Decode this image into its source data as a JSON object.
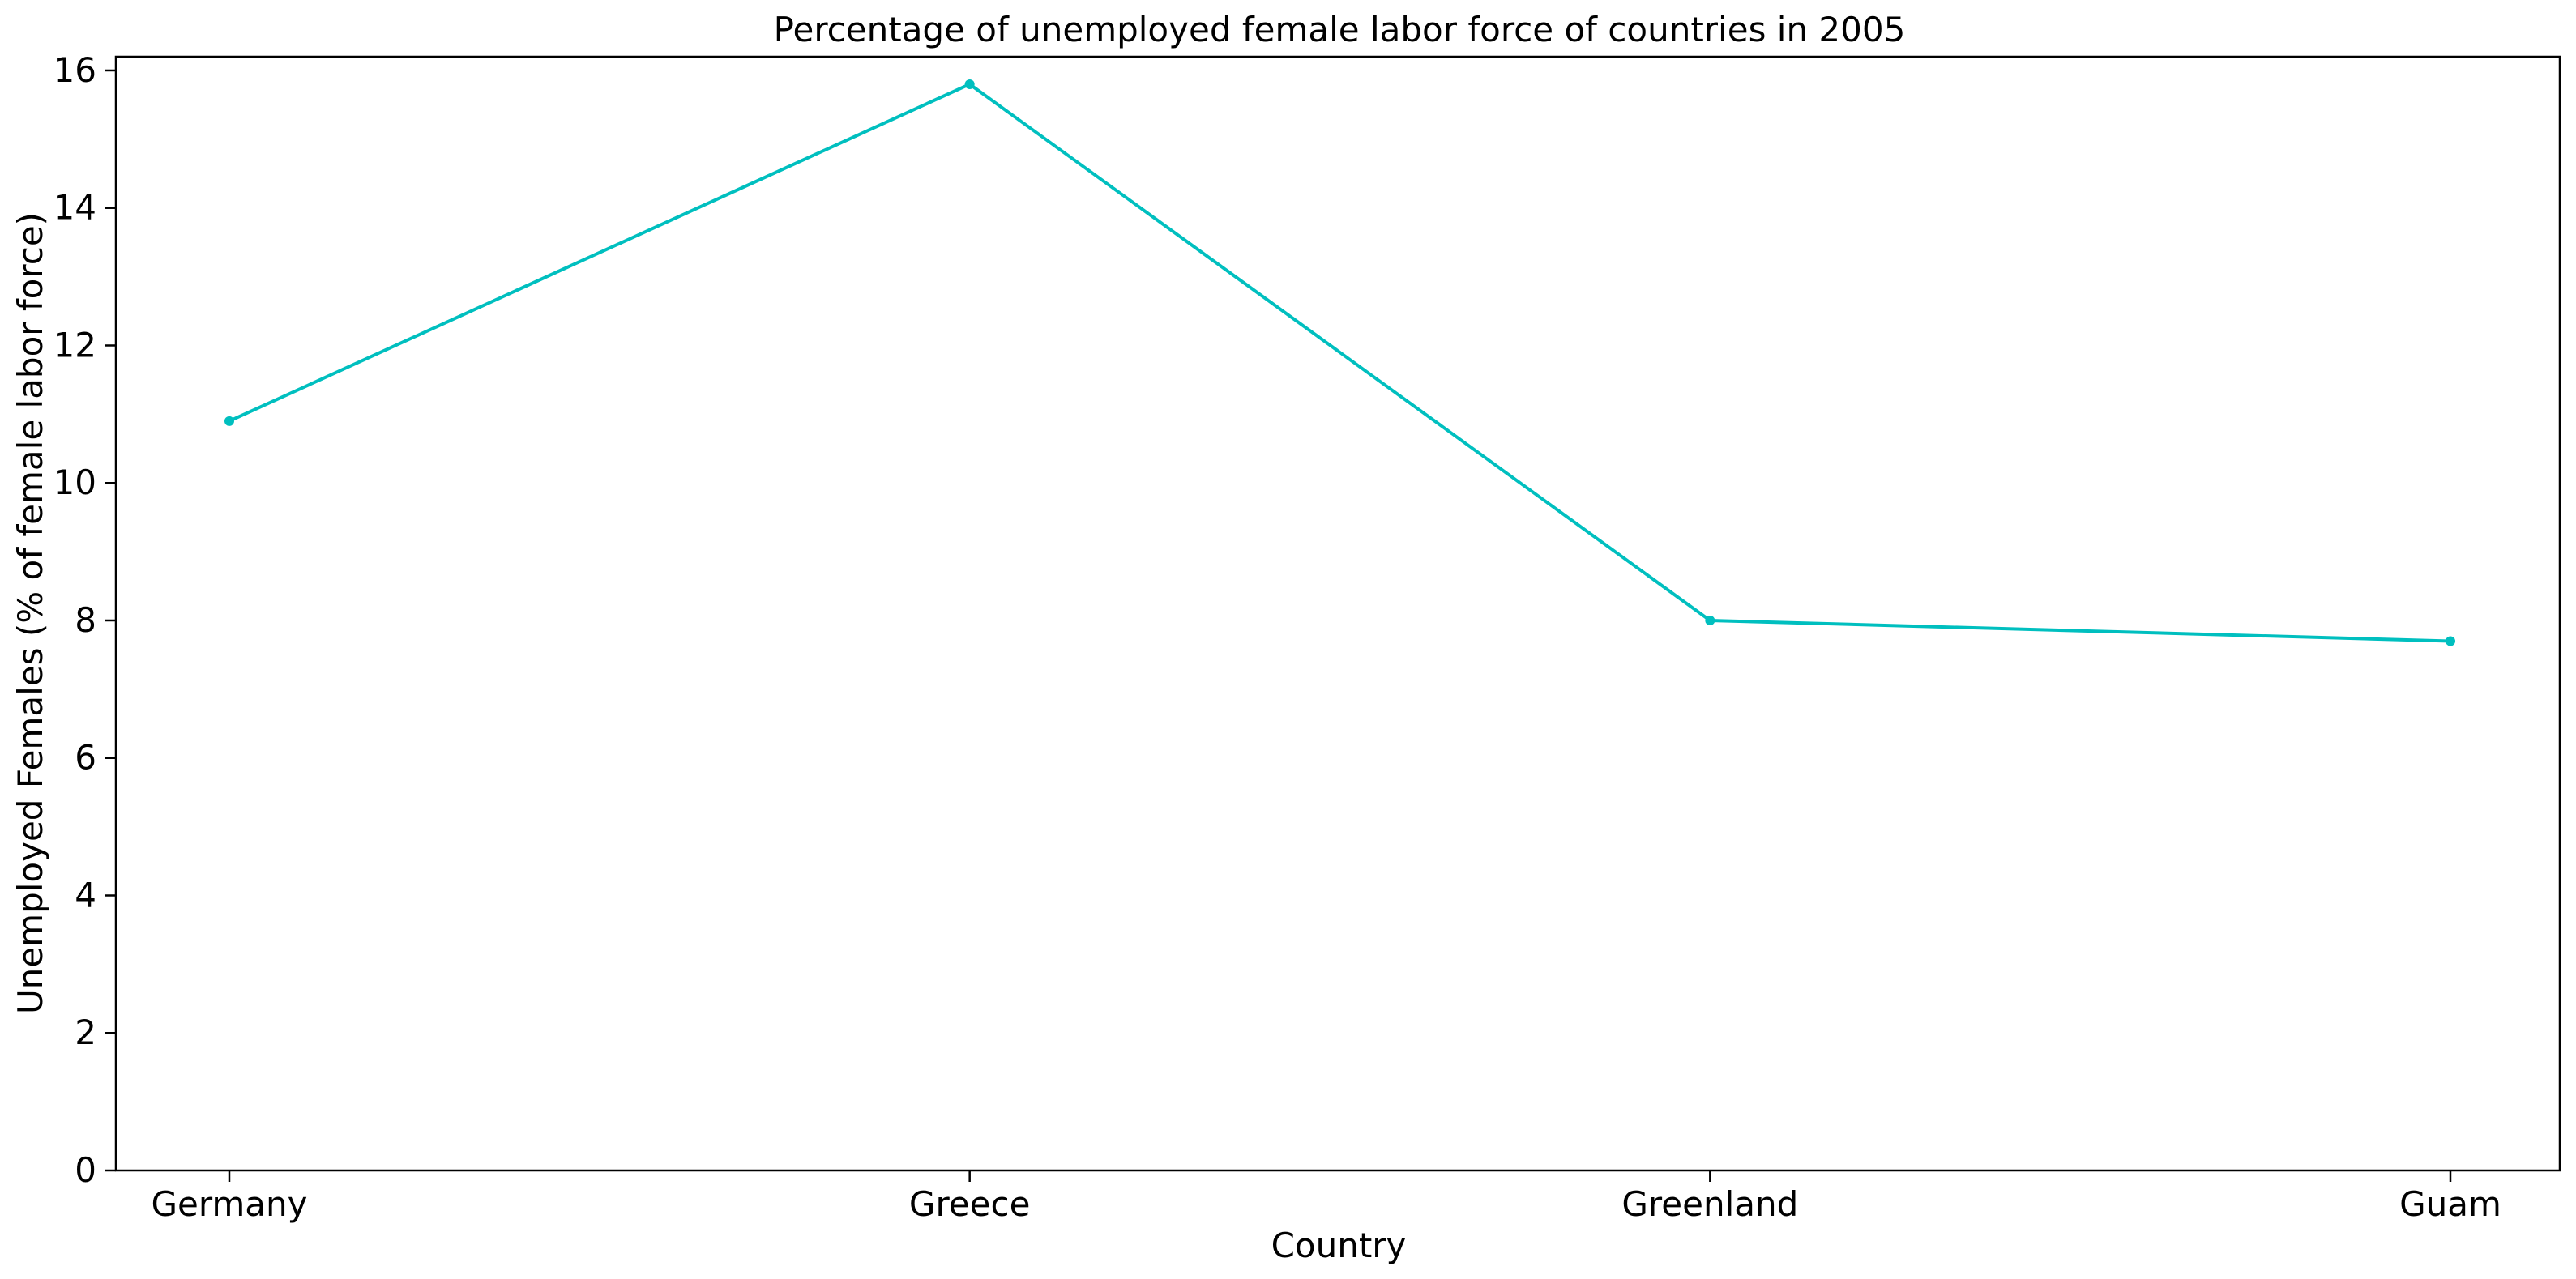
{
  "chart_data": {
    "type": "line",
    "title": "Percentage of unemployed female labor force of countries in 2005",
    "xlabel": "Country",
    "ylabel": "Unemployed Females (% of female labor force)",
    "categories": [
      "Germany",
      "Greece",
      "Greenland",
      "Guam"
    ],
    "series": [
      {
        "name": "Unemployed Females",
        "values": [
          10.9,
          15.8,
          8.0,
          7.7
        ],
        "color": "#00bfbf"
      }
    ],
    "ylim": [
      0,
      16.2
    ],
    "yticks": [
      0,
      2,
      4,
      6,
      8,
      10,
      12,
      14,
      16
    ],
    "grid": false,
    "legend": "none"
  }
}
